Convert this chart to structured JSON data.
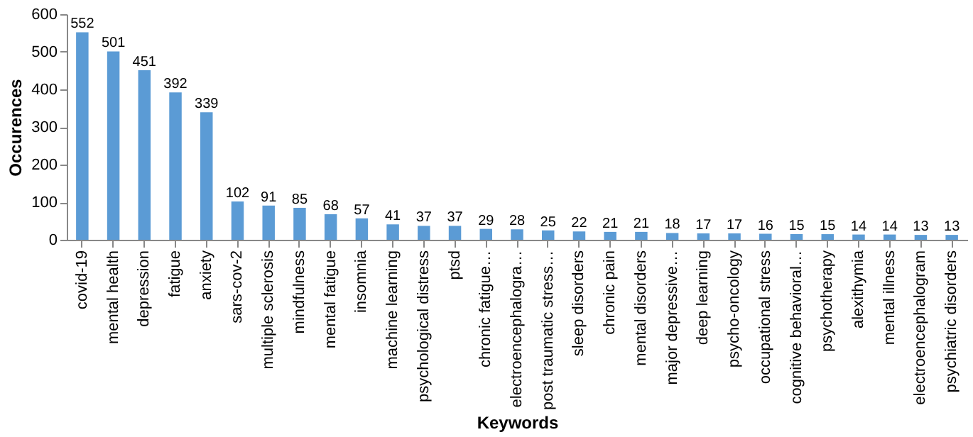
{
  "chart_data": {
    "type": "bar",
    "xlabel": "Keywords",
    "ylabel": "Occurences",
    "categories": [
      "covid-19",
      "mental health",
      "depression",
      "fatigue",
      "anxiety",
      "sars-cov-2",
      "multiple sclerosis",
      "mindfulness",
      "mental fatigue",
      "insomnia",
      "machine learning",
      "psychological distress",
      "ptsd",
      "chronic fatigue…",
      "electroencephalogra…",
      "post traumatic stress…",
      "sleep disorders",
      "chronic pain",
      "mental disorders",
      "major depressive…",
      "deep learning",
      "psycho-oncology",
      "occupational stress",
      "cognitive behavioral…",
      "psychotherapy",
      "alexithymia",
      "mental illness",
      "electroencephalogram",
      "psychiatric disorders"
    ],
    "values": [
      552,
      501,
      451,
      392,
      339,
      102,
      91,
      85,
      68,
      57,
      41,
      37,
      37,
      29,
      28,
      25,
      22,
      21,
      21,
      18,
      17,
      17,
      16,
      15,
      15,
      14,
      14,
      13,
      13
    ],
    "color": "#5b9bd5",
    "data_labels": true,
    "ylim": [
      0,
      600
    ],
    "yticks": [
      0,
      100,
      200,
      300,
      400,
      500,
      600
    ],
    "grid": false
  }
}
